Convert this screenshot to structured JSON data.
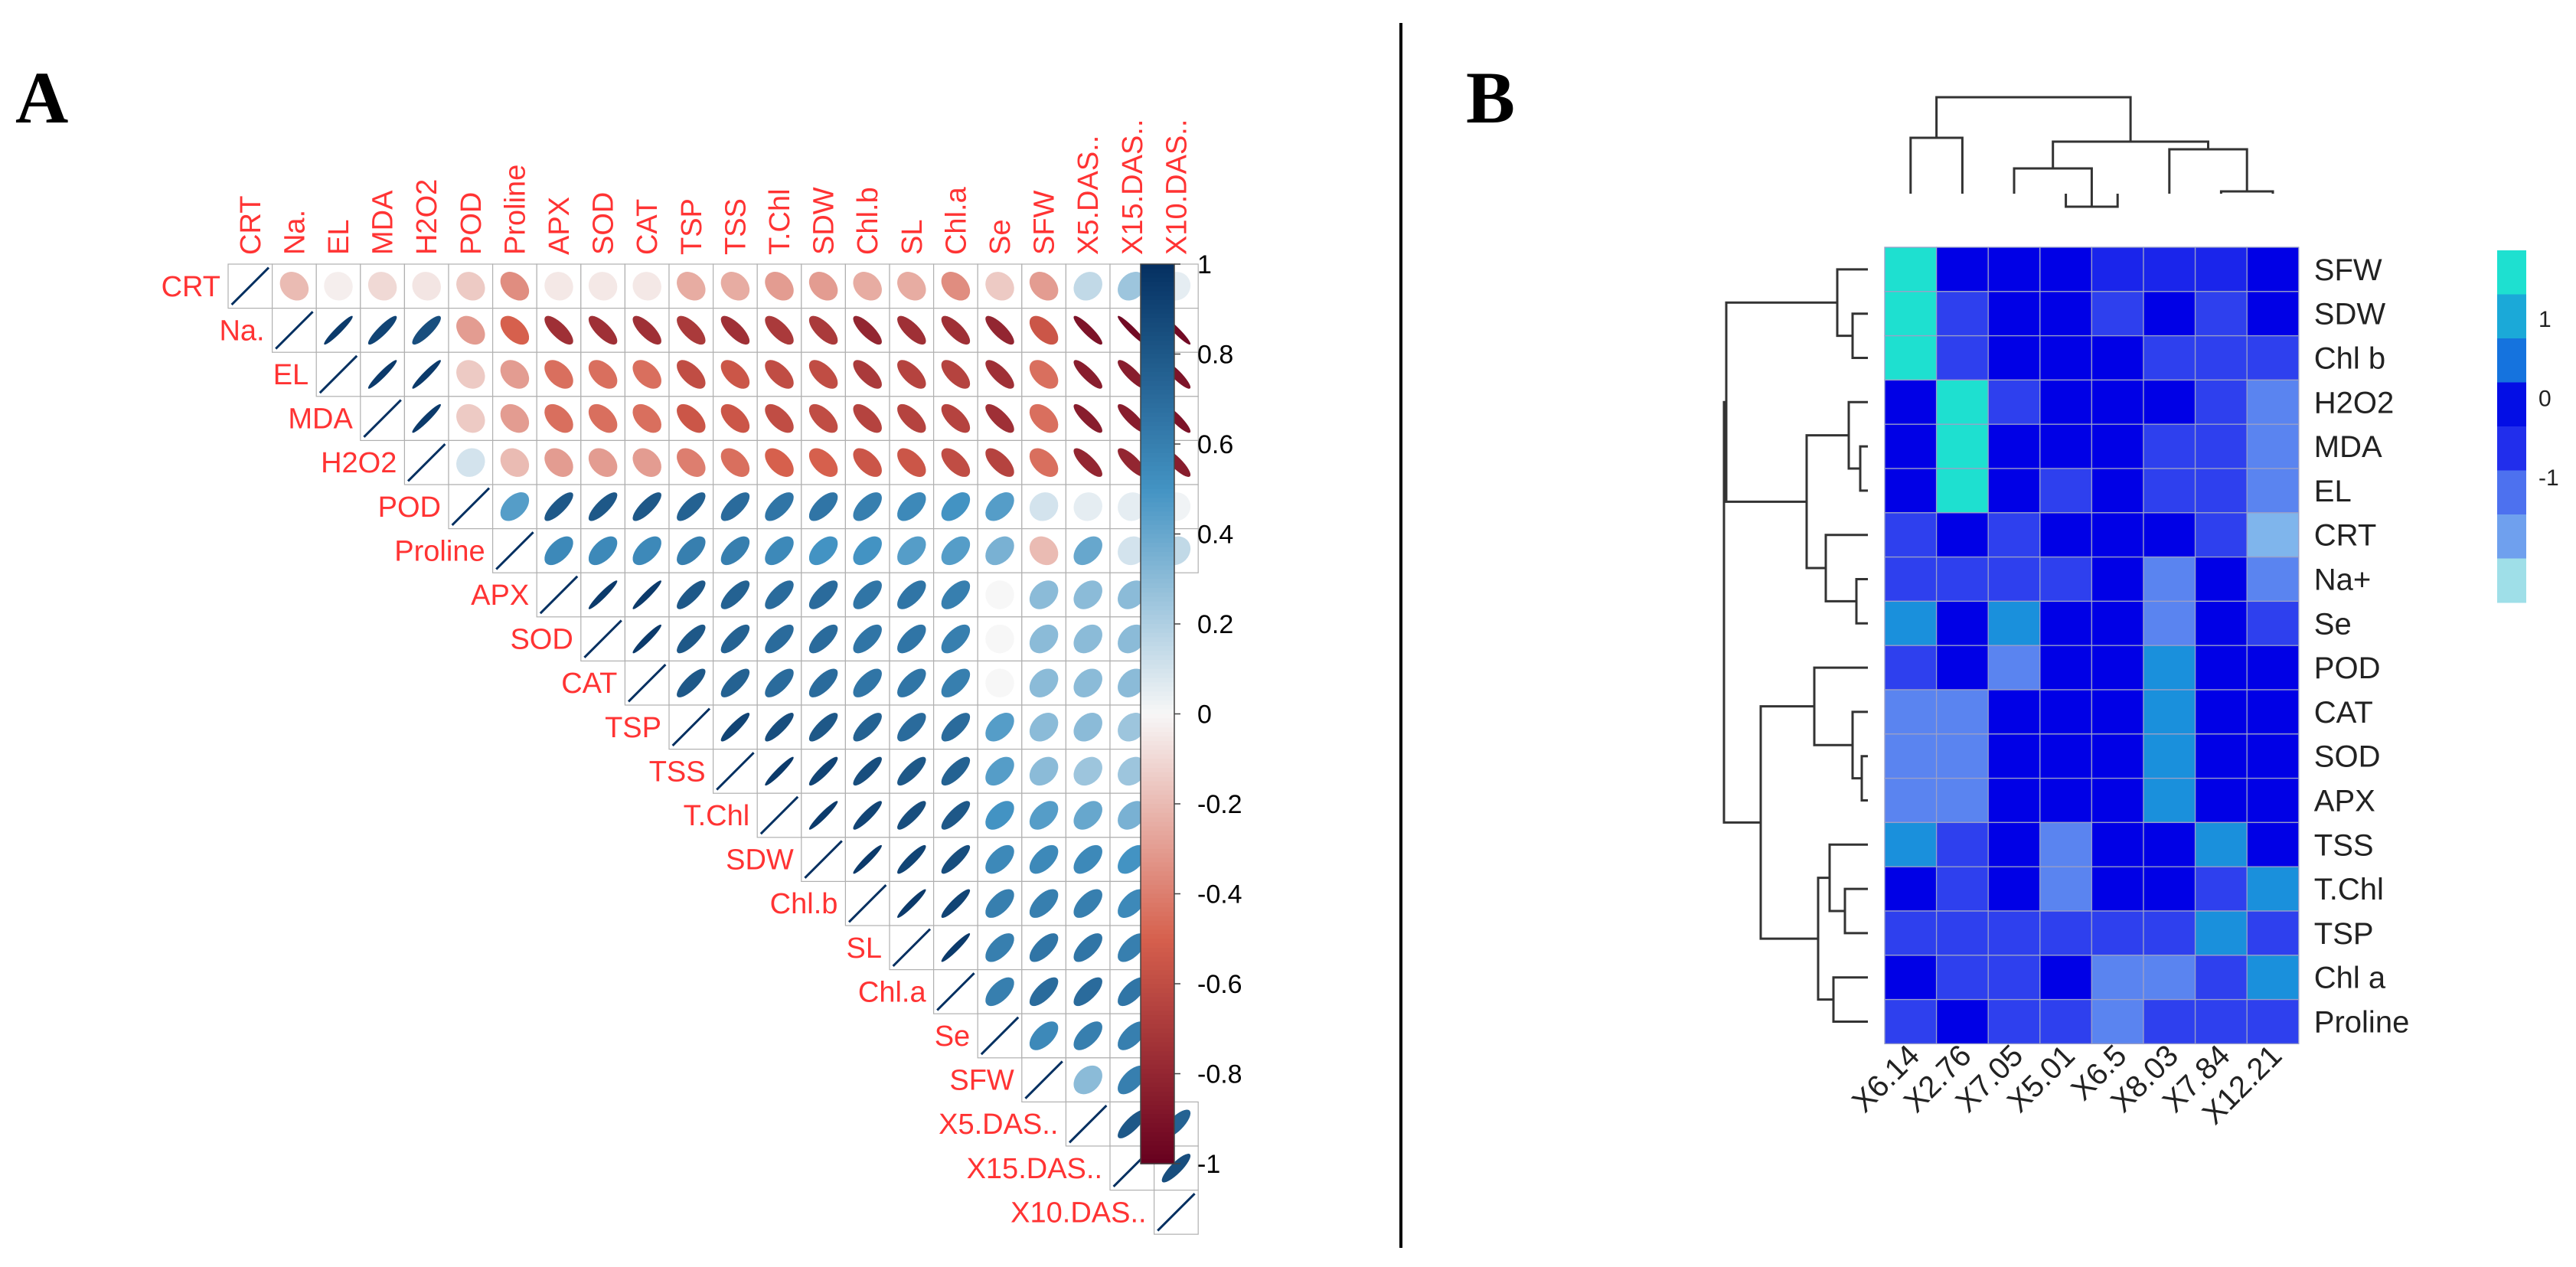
{
  "panels": {
    "A": {
      "letter": "A"
    },
    "B": {
      "letter": "B"
    }
  },
  "colors": {
    "strong_negative": "#67001f",
    "negative": "#d6604d",
    "neutral": "#f7f7f7",
    "positive": "#4393c3",
    "strong_positive": "#053061",
    "variable_label": "#ff3333",
    "heat_low": "#9fdfe8",
    "heat_mid": "#0000e6",
    "heat_high": "#1ee0d0",
    "grid_line": "#b0b0b0",
    "divider": "#000000"
  },
  "chart_data": [
    {
      "type": "heatmap",
      "subtype": "correlation-ellipse-upper-triangle",
      "panel": "A",
      "variables": [
        "CRT",
        "Na.",
        "EL",
        "MDA",
        "H2O2",
        "POD",
        "Proline",
        "APX",
        "SOD",
        "CAT",
        "TSP",
        "TSS",
        "T.Chl",
        "SDW",
        "Chl.b",
        "SL",
        "Chl.a",
        "Se",
        "SFW",
        "X5.DAS..",
        "X15.DAS..",
        "X10.DAS.."
      ],
      "values_upper_triangle_rows": [
        [
          1,
          -0.2,
          -0.03,
          -0.1,
          -0.06,
          -0.15,
          -0.35,
          -0.05,
          -0.05,
          -0.05,
          -0.25,
          -0.25,
          -0.3,
          -0.3,
          -0.25,
          -0.25,
          -0.35,
          -0.15,
          -0.3,
          0.15,
          0.25,
          0.05
        ],
        [
          1,
          0.95,
          0.9,
          0.85,
          -0.3,
          -0.5,
          -0.75,
          -0.75,
          -0.75,
          -0.7,
          -0.75,
          -0.7,
          -0.7,
          -0.8,
          -0.75,
          -0.75,
          -0.8,
          -0.55,
          -0.9,
          -0.95,
          -0.95
        ],
        [
          1,
          0.95,
          0.95,
          -0.15,
          -0.3,
          -0.45,
          -0.45,
          -0.45,
          -0.6,
          -0.55,
          -0.6,
          -0.6,
          -0.7,
          -0.65,
          -0.65,
          -0.75,
          -0.45,
          -0.85,
          -0.85,
          -0.9
        ],
        [
          1,
          0.95,
          -0.15,
          -0.3,
          -0.45,
          -0.45,
          -0.45,
          -0.55,
          -0.55,
          -0.6,
          -0.6,
          -0.65,
          -0.65,
          -0.65,
          -0.75,
          -0.45,
          -0.85,
          -0.85,
          -0.9
        ],
        [
          1,
          0.1,
          -0.2,
          -0.3,
          -0.3,
          -0.3,
          -0.4,
          -0.45,
          -0.5,
          -0.5,
          -0.55,
          -0.55,
          -0.6,
          -0.65,
          -0.45,
          -0.8,
          -0.8,
          -0.85
        ],
        [
          1,
          0.45,
          0.8,
          0.8,
          0.8,
          0.75,
          0.7,
          0.65,
          0.65,
          0.6,
          0.55,
          0.5,
          0.45,
          0.1,
          0.05,
          0.05,
          0.02
        ],
        [
          1,
          0.55,
          0.55,
          0.55,
          0.6,
          0.6,
          0.55,
          0.5,
          0.5,
          0.45,
          0.45,
          0.35,
          -0.2,
          0.4,
          0.1,
          0.15
        ],
        [
          1,
          0.95,
          0.95,
          0.8,
          0.75,
          0.7,
          0.7,
          0.65,
          0.65,
          0.6,
          0.0,
          0.3,
          0.3,
          0.3
        ],
        [
          1,
          0.95,
          0.8,
          0.75,
          0.7,
          0.7,
          0.65,
          0.65,
          0.6,
          0.0,
          0.3,
          0.3,
          0.3
        ],
        [
          1,
          0.8,
          0.75,
          0.7,
          0.7,
          0.65,
          0.65,
          0.6,
          0.0,
          0.3,
          0.3,
          0.3
        ],
        [
          1,
          0.9,
          0.85,
          0.8,
          0.75,
          0.7,
          0.7,
          0.45,
          0.3,
          0.3,
          0.25
        ],
        [
          1,
          0.95,
          0.9,
          0.85,
          0.8,
          0.75,
          0.45,
          0.3,
          0.25,
          0.25
        ],
        [
          1,
          0.95,
          0.9,
          0.85,
          0.8,
          0.5,
          0.45,
          0.4,
          0.35
        ],
        [
          1,
          0.95,
          0.9,
          0.85,
          0.55,
          0.55,
          0.55,
          0.5
        ],
        [
          1,
          0.95,
          0.9,
          0.6,
          0.6,
          0.6,
          0.55
        ],
        [
          1,
          0.95,
          0.6,
          0.65,
          0.65,
          0.6
        ],
        [
          1,
          0.6,
          0.7,
          0.7,
          0.65
        ],
        [
          1,
          0.55,
          0.6,
          0.6
        ],
        [
          1,
          0.3,
          0.6
        ],
        [
          1,
          0.8,
          0.75
        ],
        [
          1,
          0.85
        ],
        [
          1
        ]
      ],
      "colorbar": {
        "ticks": [
          "1",
          "0.8",
          "0.6",
          "0.4",
          "0.2",
          "0",
          "-0.2",
          "-0.4",
          "-0.6",
          "-0.8",
          "-1"
        ],
        "range": [
          -1,
          1
        ]
      }
    },
    {
      "type": "heatmap",
      "subtype": "clustered-heatmap",
      "panel": "B",
      "columns": [
        "X6.14",
        "X2.76",
        "X7.05",
        "X5.01",
        "X6.5",
        "X8.03",
        "X7.84",
        "X12.21"
      ],
      "rows": [
        "SFW",
        "SDW",
        "Chl b",
        "H2O2",
        "MDA",
        "EL",
        "CRT",
        "Na+",
        "Se",
        "POD",
        "CAT",
        "SOD",
        "APX",
        "TSS",
        "T.Chl",
        "TSP",
        "Chl a",
        "Proline"
      ],
      "values": [
        [
          2.5,
          0.2,
          0.2,
          0.2,
          -0.2,
          -0.2,
          -0.2,
          0.2
        ],
        [
          2.5,
          -0.5,
          0.2,
          0.2,
          -0.5,
          0.2,
          -0.5,
          0.2
        ],
        [
          2.5,
          -0.5,
          0.2,
          0.2,
          0.2,
          -0.5,
          -0.5,
          -0.5
        ],
        [
          0.2,
          2.5,
          -0.5,
          0.2,
          0.2,
          0.2,
          -0.5,
          -1.2
        ],
        [
          0.2,
          2.5,
          0.2,
          0.2,
          0.2,
          -0.5,
          -0.5,
          -1.2
        ],
        [
          0.2,
          2.5,
          0.2,
          -0.5,
          0.2,
          -0.5,
          -0.5,
          -1.2
        ],
        [
          -0.5,
          0.2,
          -0.5,
          0.2,
          0.2,
          0.2,
          -0.5,
          -1.9
        ],
        [
          -0.5,
          -0.5,
          -0.5,
          -0.5,
          0.2,
          -1.2,
          0.2,
          -1.2
        ],
        [
          1.2,
          0.2,
          1.2,
          0.2,
          0.2,
          -1.2,
          0.2,
          -0.5
        ],
        [
          -0.5,
          0.2,
          -1.2,
          0.2,
          0.2,
          1.2,
          0.2,
          0.2
        ],
        [
          -1.2,
          -1.2,
          0.2,
          0.2,
          0.2,
          1.2,
          0.2,
          0.2
        ],
        [
          -1.2,
          -1.2,
          0.2,
          0.2,
          0.2,
          1.2,
          0.2,
          0.2
        ],
        [
          -1.2,
          -1.2,
          0.2,
          0.2,
          0.2,
          1.2,
          0.2,
          0.2
        ],
        [
          1.2,
          -0.5,
          0.2,
          -1.2,
          0.2,
          0.2,
          1.2,
          0.2
        ],
        [
          0.2,
          -0.5,
          0.2,
          -1.2,
          0.2,
          0.2,
          -0.5,
          1.2
        ],
        [
          -0.5,
          -0.5,
          -0.5,
          -0.5,
          -0.5,
          -0.5,
          1.2,
          -0.5
        ],
        [
          0.2,
          -0.5,
          -0.5,
          0.2,
          -1.2,
          -1.2,
          -0.5,
          1.2
        ],
        [
          -0.5,
          0.2,
          -0.5,
          -0.5,
          -1.2,
          -0.5,
          -0.5,
          -0.5
        ]
      ],
      "legend_ticks": [
        "1",
        "0",
        "-1"
      ],
      "legend_steps": [
        2.5,
        1.6,
        1.0,
        0.3,
        -0.3,
        -1.0,
        -1.6,
        -2.5
      ],
      "range": [
        -2.5,
        2.5
      ]
    }
  ]
}
